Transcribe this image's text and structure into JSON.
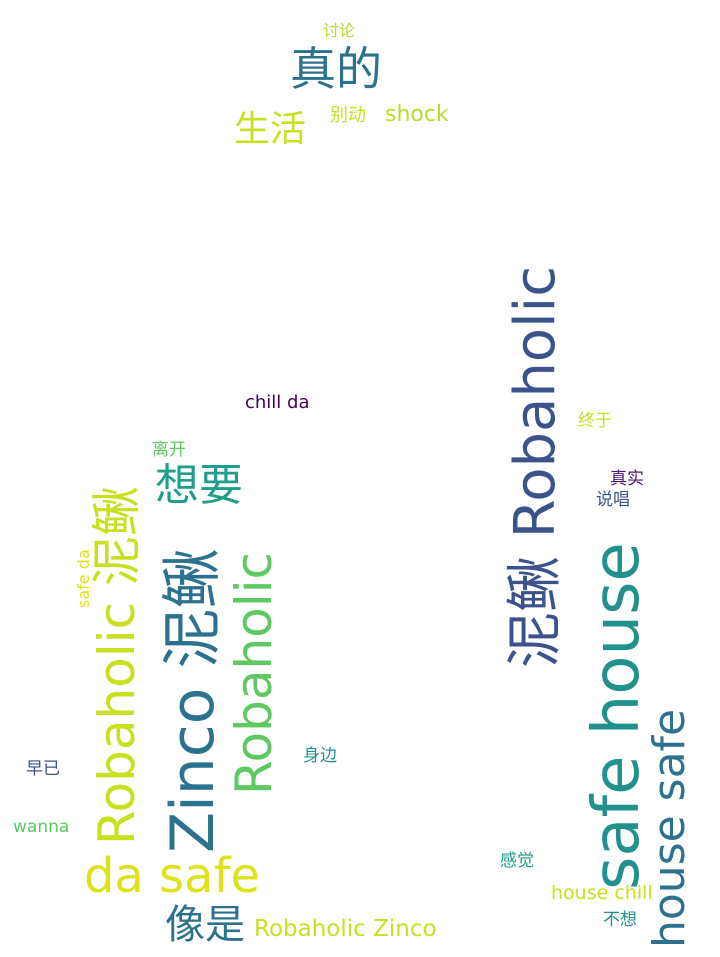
{
  "word_cloud": {
    "words": [
      {
        "text": "讨论",
        "color": "#b5de2b"
      },
      {
        "text": "真的",
        "color": "#2c728e"
      },
      {
        "text": "生活",
        "color": "#c8e020"
      },
      {
        "text": "别动",
        "color": "#c8e020"
      },
      {
        "text": "shock",
        "color": "#b5de2b"
      },
      {
        "text": "chill da",
        "color": "#440154"
      },
      {
        "text": "离开",
        "color": "#5ec962"
      },
      {
        "text": "想要",
        "color": "#1f9e89"
      },
      {
        "text": "终于",
        "color": "#c8e020"
      },
      {
        "text": "真实",
        "color": "#481b6d"
      },
      {
        "text": "说唱",
        "color": "#3b528b"
      },
      {
        "text": "早已",
        "color": "#3b528b"
      },
      {
        "text": "wanna",
        "color": "#5ec962"
      },
      {
        "text": "身边",
        "color": "#21918c"
      },
      {
        "text": "da safe",
        "color": "#dde318"
      },
      {
        "text": "像是",
        "color": "#2c728e"
      },
      {
        "text": "Robaholic Zinco",
        "color": "#c8e020"
      },
      {
        "text": "感觉",
        "color": "#1f9e89"
      },
      {
        "text": "house chill",
        "color": "#c8e020"
      },
      {
        "text": "不想",
        "color": "#21918c"
      }
    ],
    "vertical_words": [
      {
        "text": "safe da",
        "color": "#dde318"
      },
      {
        "text": "Robaholic 泥鳅",
        "color": "#c8e020"
      },
      {
        "text": "Zinco 泥鳅",
        "color": "#2c728e"
      },
      {
        "text": "Robaholic",
        "color": "#5ec962"
      },
      {
        "text": "泥鳅 Robaholic",
        "color": "#3b528b"
      },
      {
        "text": "safe house",
        "color": "#21918c"
      },
      {
        "text": "house safe",
        "color": "#2c728e"
      }
    ]
  }
}
